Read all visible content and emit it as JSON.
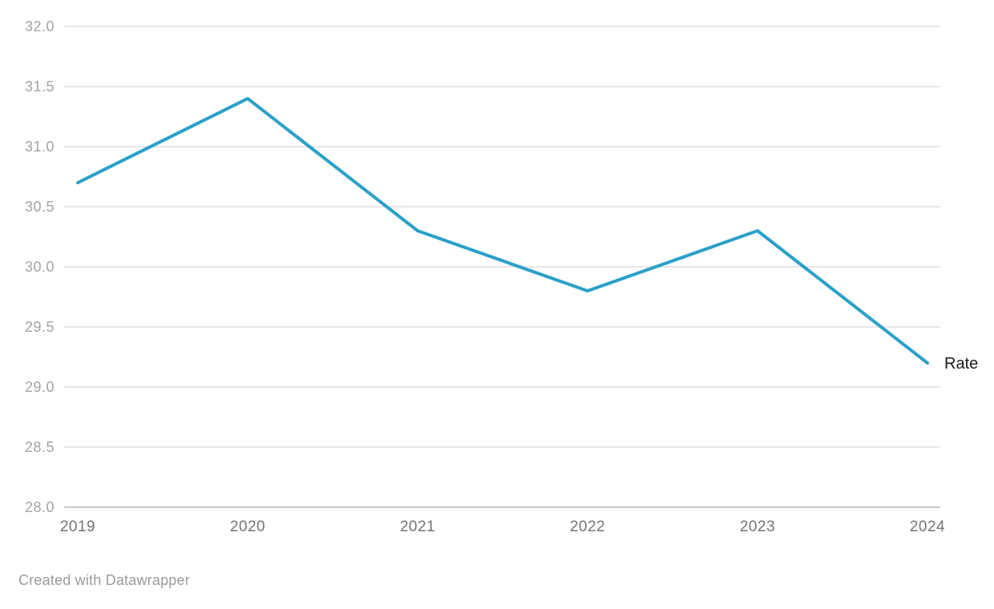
{
  "chart_data": {
    "type": "line",
    "x": [
      "2019",
      "2020",
      "2021",
      "2022",
      "2023",
      "2024"
    ],
    "series": [
      {
        "name": "Rate",
        "values": [
          30.7,
          31.4,
          30.3,
          29.8,
          30.3,
          29.2
        ]
      }
    ],
    "title": "",
    "xlabel": "",
    "ylabel": "",
    "ylim": [
      28.0,
      32.0
    ],
    "ytick_step": 0.5,
    "ytick_decimals": 1,
    "grid": true,
    "legend_position": "end-of-line",
    "colors": {
      "line": "#2aa0c8",
      "gridline": "#e7e7e7",
      "baseline": "#c9c9c9",
      "y_tick_label": "#a3a3a3",
      "x_tick_label": "#737373",
      "series_label": "#1a1a1a"
    }
  },
  "footer": {
    "attribution": "Created with Datawrapper"
  }
}
